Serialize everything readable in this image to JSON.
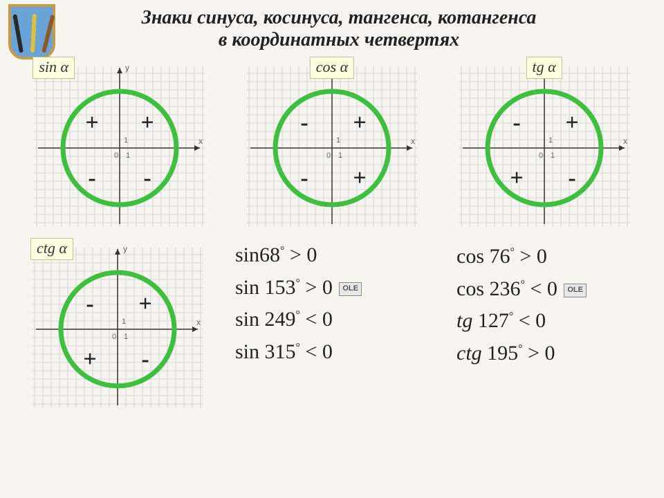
{
  "title_line1": "Знаки  синуса, косинуса, тангенса, котангенса",
  "title_line2": "в  координатных  четвертях",
  "circle_style": {
    "radius": 82,
    "stroke": "#3fbf3f",
    "stroke_width": 7,
    "grid_color": "#cccccc",
    "axis_color": "#333333",
    "tick_label_color": "#666666",
    "sign_font_size": 34,
    "sign_color": "#222222"
  },
  "panels": [
    {
      "label": "sin α",
      "label_pos": "left",
      "signs": {
        "q1": "+",
        "q2": "+",
        "q3": "-",
        "q4": "-"
      }
    },
    {
      "label": "cos α",
      "label_pos": "center",
      "signs": {
        "q1": "+",
        "q2": "-",
        "q3": "-",
        "q4": "+"
      }
    },
    {
      "label": "tg α",
      "label_pos": "center",
      "signs": {
        "q1": "+",
        "q2": "-",
        "q3": "+",
        "q4": "-"
      }
    },
    {
      "label": "ctg α",
      "label_pos": "left",
      "signs": {
        "q1": "+",
        "q2": "-",
        "q3": "+",
        "q4": "-"
      }
    }
  ],
  "axis": {
    "x": "x",
    "y": "y",
    "origin": "0",
    "one": "1"
  },
  "formulas_left": [
    {
      "func": "sin",
      "deg": "68",
      "cmp": ">",
      "rhs": "0"
    },
    {
      "func": "sin",
      "deg": "153",
      "cmp": ">",
      "rhs": "0",
      "badge": "OLE"
    },
    {
      "func": "sin",
      "deg": "249",
      "cmp": "<",
      "rhs": "0"
    },
    {
      "func": "sin",
      "deg": "315",
      "cmp": "<",
      "rhs": "0"
    }
  ],
  "formulas_right": [
    {
      "func": "cos",
      "deg": "76",
      "cmp": ">",
      "rhs": "0"
    },
    {
      "func": "cos",
      "deg": "236",
      "cmp": "<",
      "rhs": "0",
      "badge": "OLE"
    },
    {
      "func": "tg",
      "deg": "127",
      "cmp": "<",
      "rhs": "0",
      "italic": true
    },
    {
      "func": "ctg",
      "deg": "195",
      "cmp": ">",
      "rhs": "0",
      "italic": true
    }
  ]
}
